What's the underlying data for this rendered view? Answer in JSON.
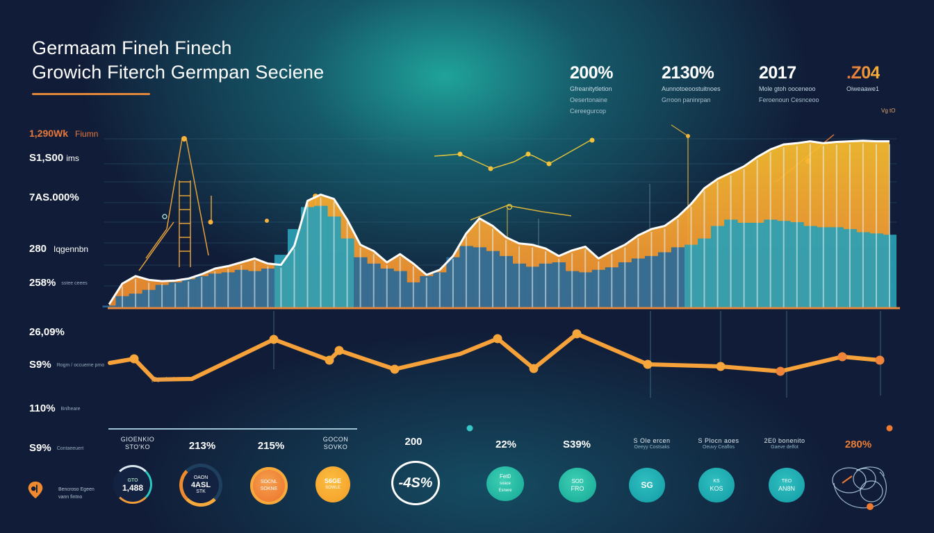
{
  "header": {
    "title_line1": "Germaam Fineh Finech",
    "title_line2": "Growich Fiterch Germpan Seciene",
    "accent_color": "#e4873a"
  },
  "stats": [
    {
      "value": "200%",
      "sub1": "Gfreanitytletion",
      "sub2": "Oesertonaine",
      "sub3": "Cereegurcop"
    },
    {
      "value": "2130%",
      "sub1": "Aunnotoeoostuitnoes",
      "sub2": "Grroon paninrpan",
      "sub3": ""
    },
    {
      "value": "2017",
      "sub1": "Mole gtoh ooceneoo",
      "sub2": "Feroenoun Cesnceoo",
      "sub3": ""
    },
    {
      "value": ".Z04",
      "sub1": "Oiweaawe1",
      "sub2": "",
      "sub3": ""
    }
  ],
  "corner_tag": "Vg tO",
  "left_axis": [
    {
      "value": "1,290Wk",
      "unit": "Fiumn",
      "style": "orange"
    },
    {
      "value": "S1,S00",
      "unit": "ims",
      "style": "white"
    },
    {
      "value": "7AS.000%",
      "unit": "",
      "style": "white"
    },
    {
      "value": "280",
      "unit": "Iqgennbn",
      "style": "white"
    },
    {
      "value": "258%",
      "unit": "sstee ceees",
      "style": "white"
    },
    {
      "value": "26,09%",
      "unit": "",
      "style": "white"
    },
    {
      "value": "S9%",
      "unit": "Rogm / occueme pmo",
      "style": "white"
    },
    {
      "value": "110%",
      "unit": "Bnlheare",
      "style": "white"
    },
    {
      "value": "S9%",
      "unit": "Contaeeuert",
      "style": "white"
    }
  ],
  "legend": {
    "icon": "location-pin-icon",
    "line1": "Bencroso Egeen",
    "line2": "vann fintno"
  },
  "bottom_kpis": [
    {
      "label": "GIOENKIO\nSTO'KO",
      "label_style": "small",
      "circle_text": "GTO\n1,488",
      "circle_style": "ring-teal"
    },
    {
      "label": "213%",
      "label_style": "big",
      "circle_text": "OAON\n4ASL\nSTK",
      "circle_style": "ring-orange"
    },
    {
      "label": "215%",
      "label_style": "big",
      "circle_text": "SOCNL\nSOKNE",
      "circle_style": "orange"
    },
    {
      "label": "GOCON\nSOVKO",
      "label_style": "small",
      "circle_text": "S6GE\nSOWLE",
      "circle_style": "yellow"
    },
    {
      "label": "200",
      "label_style": "big",
      "circle_text": "-4S%",
      "circle_style": "outline"
    },
    {
      "label": "22%",
      "label_style": "big",
      "circle_text": "Fet0\nsoace\nEsnere",
      "circle_style": "teal"
    },
    {
      "label": "S39%",
      "label_style": "big",
      "circle_text": "SOD\nFRO",
      "circle_style": "teal"
    },
    {
      "label": "S Ole ercen",
      "caption": "Oeeyy Costsaks",
      "label_style": "small",
      "circle_text": "SG",
      "circle_style": "teal2"
    },
    {
      "label": "S Plocn aoes",
      "caption": "Oeuvy Ceaflos",
      "label_style": "small",
      "circle_text": "KS\nKOS",
      "circle_style": "teal2"
    },
    {
      "label": "2E0 bonenito",
      "caption": "Gaeve delfot",
      "label_style": "small",
      "circle_text": "TEO\nAN8N",
      "circle_style": "teal2"
    },
    {
      "label": "280%",
      "label_style": "orange",
      "circle_text": "",
      "circle_style": "sketch"
    }
  ],
  "chart_data": [
    {
      "type": "area",
      "title": "Germaam Fineh Finech — Growich Fiterch Germpan Seciene",
      "description": "Upper combined area + bar chart: white-outlined orange/yellow area with blue/teal bars underneath",
      "x": [
        1,
        2,
        3,
        4,
        5,
        6,
        7,
        8,
        9,
        10,
        11,
        12,
        13,
        14,
        15,
        16,
        17,
        18,
        19,
        20,
        21,
        22,
        23,
        24,
        25,
        26,
        27,
        28,
        29,
        30,
        31,
        32,
        33,
        34,
        35,
        36,
        37,
        38,
        39,
        40,
        41,
        42,
        43,
        44,
        45,
        46,
        47,
        48,
        49,
        50,
        51,
        52,
        53,
        54,
        55,
        56,
        57,
        58,
        59,
        60
      ],
      "series": [
        {
          "name": "Area (orange/yellow)",
          "color": "#f7a230",
          "values": [
            5,
            38,
            50,
            44,
            42,
            43,
            46,
            53,
            62,
            66,
            72,
            78,
            70,
            68,
            98,
            170,
            180,
            173,
            140,
            100,
            90,
            72,
            85,
            70,
            52,
            60,
            82,
            118,
            142,
            130,
            112,
            102,
            100,
            94,
            82,
            91,
            97,
            78,
            90,
            100,
            115,
            125,
            130,
            145,
            165,
            190,
            205,
            215,
            225,
            240,
            252,
            260,
            262,
            265,
            262,
            264,
            265,
            266,
            265,
            265
          ]
        },
        {
          "name": "Bars (blue/teal)",
          "color": "#2e7fa4",
          "values": [
            3,
            18,
            22,
            28,
            36,
            40,
            45,
            50,
            54,
            56,
            60,
            58,
            62,
            84,
            125,
            160,
            162,
            145,
            110,
            80,
            70,
            62,
            58,
            40,
            50,
            56,
            80,
            98,
            96,
            90,
            82,
            70,
            65,
            70,
            72,
            58,
            56,
            60,
            64,
            72,
            78,
            82,
            88,
            96,
            100,
            110,
            130,
            140,
            135,
            135,
            140,
            138,
            136,
            130,
            128,
            128,
            125,
            120,
            118,
            116
          ]
        }
      ],
      "annotations": [
        "1,290Wk Fiumn",
        "S1,S00 ims",
        "7AS.000%",
        "280 Iqgennbn",
        "258%",
        "Vg tO"
      ],
      "ylim": [
        0,
        290
      ],
      "grid": true
    },
    {
      "type": "line",
      "description": "Lower line chart with orange line and markers over horizontal grid lines",
      "x": [
        1,
        2,
        3,
        4,
        5,
        6,
        7,
        8,
        9,
        10,
        11,
        12,
        13,
        14,
        15,
        16,
        17,
        18,
        19
      ],
      "series": [
        {
          "name": "Orange line",
          "color": "#f6a13a",
          "values": [
            46,
            48,
            28,
            30,
            60,
            52,
            55,
            35,
            50,
            68,
            36,
            70,
            42,
            40,
            40,
            40,
            38,
            50,
            48
          ]
        }
      ],
      "y_labels": [
        "26,09%",
        "S9%",
        "110%",
        "S9%"
      ],
      "ylim": [
        0,
        100
      ],
      "grid": true
    }
  ]
}
